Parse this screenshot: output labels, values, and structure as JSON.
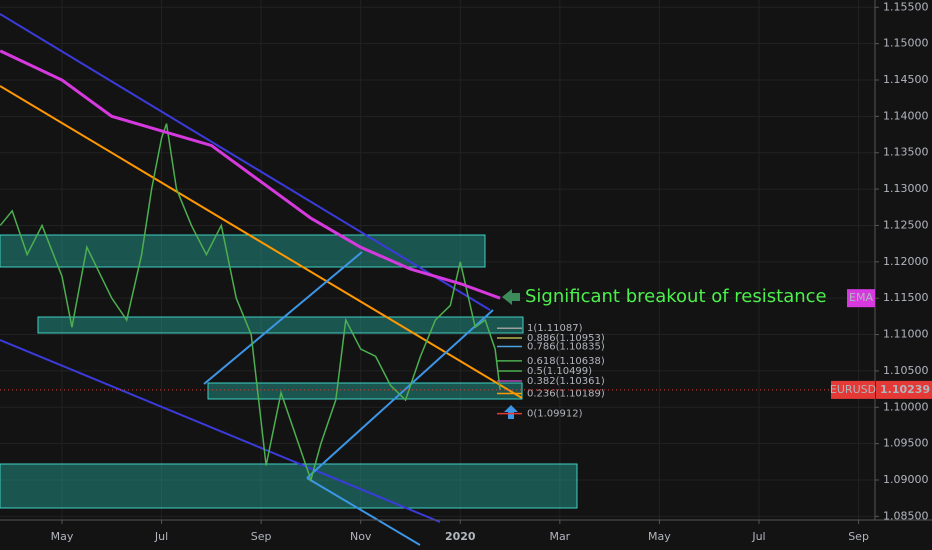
{
  "chart_data": {
    "type": "line",
    "annotation": "Significant breakout of resistance",
    "xlim": [
      2.755,
      20.33
    ],
    "xticks": [
      {
        "value": 4,
        "label": "May"
      },
      {
        "value": 6,
        "label": "Jul"
      },
      {
        "value": 8,
        "label": "Sep"
      },
      {
        "value": 10,
        "label": "Nov"
      },
      {
        "value": 12,
        "label": "2020"
      },
      {
        "value": 14,
        "label": "Mar"
      },
      {
        "value": 16,
        "label": "May"
      },
      {
        "value": 18,
        "label": "Jul"
      },
      {
        "value": 20,
        "label": "Sep"
      }
    ],
    "ylim": [
      1.0845,
      1.156
    ],
    "yticks": [
      {
        "value": 1.085,
        "label": "1.08500"
      },
      {
        "value": 1.09,
        "label": "1.09000"
      },
      {
        "value": 1.095,
        "label": "1.09500"
      },
      {
        "value": 1.1,
        "label": "1.10000"
      },
      {
        "value": 1.105,
        "label": "1.10500"
      },
      {
        "value": 1.11,
        "label": "1.11000"
      },
      {
        "value": 1.115,
        "label": "1.11500"
      },
      {
        "value": 1.12,
        "label": "1.12000"
      },
      {
        "value": 1.125,
        "label": "1.12500"
      },
      {
        "value": 1.13,
        "label": "1.13000"
      },
      {
        "value": 1.135,
        "label": "1.13500"
      },
      {
        "value": 1.14,
        "label": "1.14000"
      },
      {
        "value": 1.145,
        "label": "1.14500"
      },
      {
        "value": 1.15,
        "label": "1.15000"
      },
      {
        "value": 1.155,
        "label": "1.15500"
      }
    ],
    "grid": true,
    "series": [
      {
        "name": "EURUSD",
        "color": "#4caf50",
        "x": [
          2.76,
          3.0,
          3.3,
          3.6,
          4.0,
          4.2,
          4.5,
          5.0,
          5.3,
          5.6,
          5.8,
          6.0,
          6.1,
          6.3,
          6.6,
          6.9,
          7.2,
          7.5,
          7.8,
          8.0,
          8.1,
          8.4,
          8.7,
          9.0,
          9.2,
          9.5,
          9.7,
          10.0,
          10.3,
          10.6,
          10.9,
          11.2,
          11.5,
          11.8,
          12.0,
          12.3,
          12.5,
          12.7,
          12.8
        ],
        "values": [
          1.125,
          1.127,
          1.121,
          1.125,
          1.118,
          1.111,
          1.122,
          1.115,
          1.112,
          1.121,
          1.13,
          1.137,
          1.139,
          1.13,
          1.125,
          1.121,
          1.125,
          1.115,
          1.11,
          1.098,
          1.092,
          1.102,
          1.096,
          1.09,
          1.095,
          1.101,
          1.112,
          1.108,
          1.107,
          1.103,
          1.101,
          1.107,
          1.112,
          1.114,
          1.12,
          1.111,
          1.112,
          1.108,
          1.1024
        ]
      },
      {
        "name": "EMA",
        "color": "#d63adf",
        "x": [
          2.76,
          4.0,
          5.0,
          6.0,
          7.0,
          8.0,
          9.0,
          10.0,
          11.0,
          12.0,
          12.8
        ],
        "values": [
          1.149,
          1.145,
          1.14,
          1.138,
          1.136,
          1.131,
          1.126,
          1.122,
          1.119,
          1.117,
          1.115
        ]
      }
    ],
    "last_price": {
      "value": 1.10239,
      "label": "1.10239"
    },
    "fib_levels": [
      {
        "label": "1(1.11087)",
        "price": 1.11087,
        "color": "#9e9e9e"
      },
      {
        "label": "0.886(1.10953)",
        "price": 1.10953,
        "color": "#b3b34d"
      },
      {
        "label": "0.786(1.10835)",
        "price": 1.10835,
        "color": "#4aa3df"
      },
      {
        "label": "0.618(1.10638)",
        "price": 1.10638,
        "color": "#4caf50"
      },
      {
        "label": "0.5(1.10499)",
        "price": 1.10499,
        "color": "#4caf50"
      },
      {
        "label": "0.382(1.10361)",
        "price": 1.10361,
        "color": "#b04ab8"
      },
      {
        "label": "0.236(1.10189)",
        "price": 1.10189,
        "color": "#ff9800"
      },
      {
        "label": "0(1.09912)",
        "price": 1.09912,
        "color": "#e53935"
      }
    ]
  }
}
